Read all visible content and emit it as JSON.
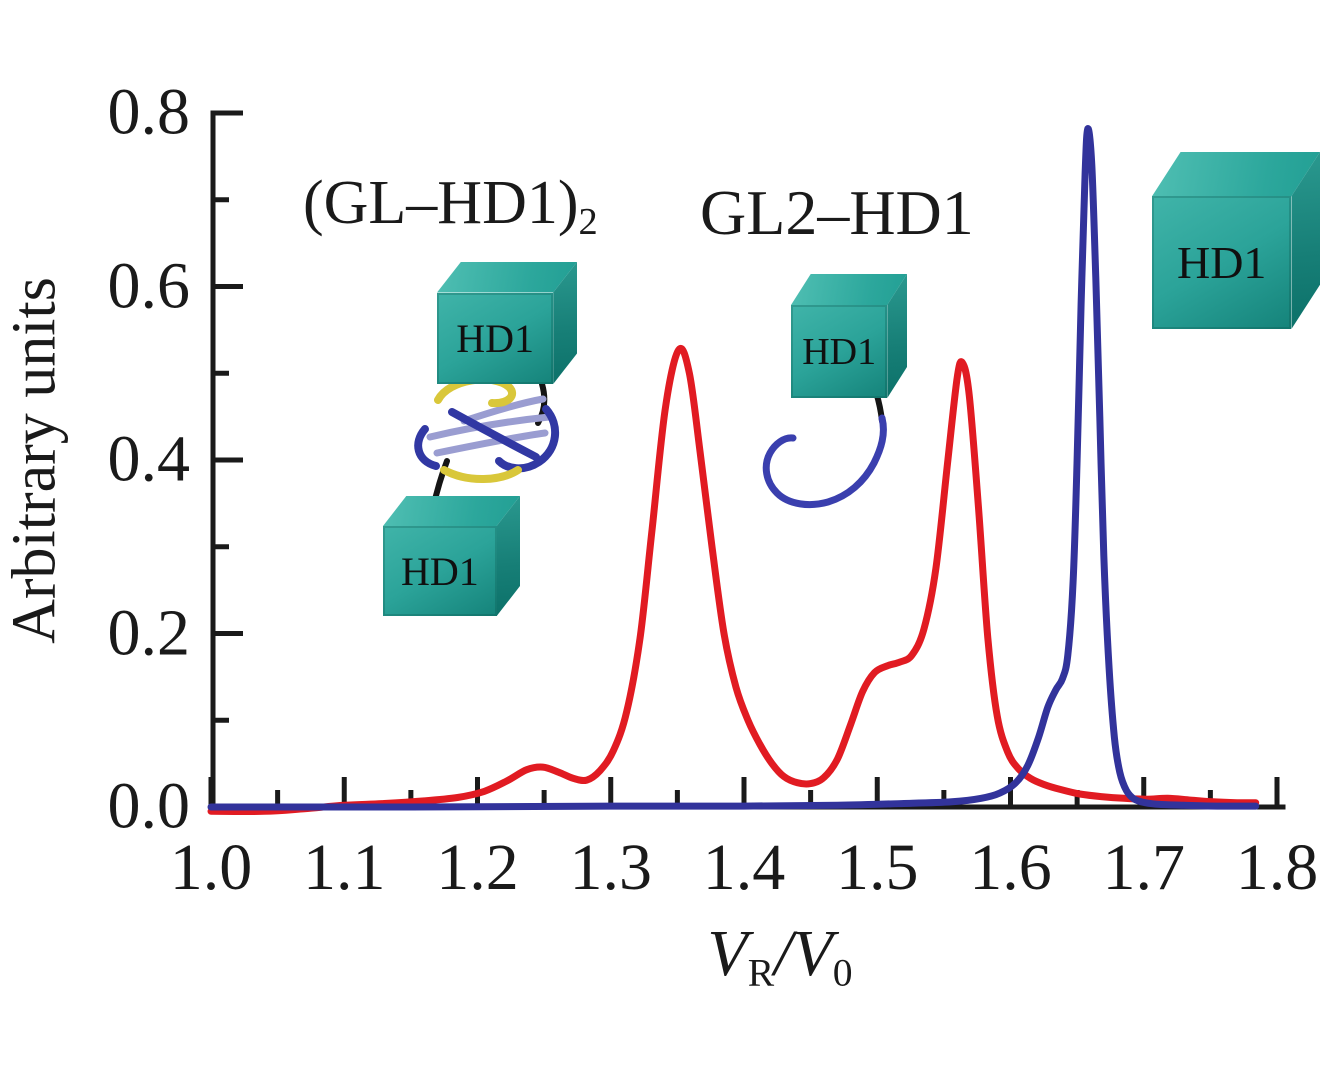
{
  "figure": {
    "ylabel": "Arbitrary units",
    "xlabel": "V_R/V_0",
    "xlabel_parts": {
      "base1": "V",
      "sub1": "R",
      "slash": "/",
      "base2": "V",
      "sub2": "0"
    }
  },
  "labels": {
    "hd1": "HD1"
  },
  "colors": {
    "red_trace": "#e11b22",
    "blue_trace": "#32339b",
    "cube_teal": "#2ba399",
    "axis": "#1a1a1a"
  },
  "chart_data": {
    "type": "line",
    "title": "",
    "xlabel": "V_R/V_0",
    "ylabel": "Arbitrary units",
    "xlim": [
      1.0,
      1.8
    ],
    "ylim": [
      0.0,
      0.8
    ],
    "grid": false,
    "legend_position": "none",
    "x_ticks": {
      "values": [
        1.0,
        1.1,
        1.2,
        1.3,
        1.4,
        1.5,
        1.6,
        1.7,
        1.8
      ],
      "labels": [
        "1.0",
        "1.1",
        "1.2",
        "1.3",
        "1.4",
        "1.5",
        "1.6",
        "1.7",
        "1.8"
      ],
      "minor": [
        1.05,
        1.15,
        1.25,
        1.35,
        1.45,
        1.55,
        1.65,
        1.75
      ]
    },
    "y_ticks": {
      "values": [
        0.0,
        0.2,
        0.4,
        0.6,
        0.8
      ],
      "labels": [
        "0.0",
        "0.2",
        "0.4",
        "0.6",
        "0.8"
      ],
      "minor": [
        0.1,
        0.3,
        0.5,
        0.7
      ]
    },
    "annotations": [
      {
        "text": "(GL–HD1)",
        "sub": "2",
        "near_peak_x": 1.35
      },
      {
        "text": "GL2–HD1",
        "near_peak_x": 1.56
      }
    ],
    "series": [
      {
        "name": "red-trace",
        "color": "#e11b22",
        "peaks": [
          {
            "x": 1.25,
            "y": 0.046
          },
          {
            "x": 1.35,
            "y": 0.53
          },
          {
            "x": 1.51,
            "y": 0.17
          },
          {
            "x": 1.56,
            "y": 0.51
          }
        ],
        "points": [
          [
            1.0,
            -0.005
          ],
          [
            1.04,
            -0.005
          ],
          [
            1.07,
            -0.002
          ],
          [
            1.1,
            0.002
          ],
          [
            1.13,
            0.004
          ],
          [
            1.16,
            0.007
          ],
          [
            1.185,
            0.011
          ],
          [
            1.205,
            0.018
          ],
          [
            1.222,
            0.03
          ],
          [
            1.237,
            0.043
          ],
          [
            1.249,
            0.046
          ],
          [
            1.261,
            0.04
          ],
          [
            1.272,
            0.033
          ],
          [
            1.282,
            0.031
          ],
          [
            1.292,
            0.042
          ],
          [
            1.302,
            0.065
          ],
          [
            1.312,
            0.11
          ],
          [
            1.322,
            0.195
          ],
          [
            1.331,
            0.32
          ],
          [
            1.341,
            0.46
          ],
          [
            1.351,
            0.527
          ],
          [
            1.359,
            0.5
          ],
          [
            1.367,
            0.41
          ],
          [
            1.376,
            0.3
          ],
          [
            1.385,
            0.2
          ],
          [
            1.394,
            0.138
          ],
          [
            1.403,
            0.1
          ],
          [
            1.412,
            0.072
          ],
          [
            1.421,
            0.05
          ],
          [
            1.43,
            0.035
          ],
          [
            1.44,
            0.028
          ],
          [
            1.45,
            0.027
          ],
          [
            1.46,
            0.034
          ],
          [
            1.47,
            0.055
          ],
          [
            1.48,
            0.095
          ],
          [
            1.489,
            0.133
          ],
          [
            1.498,
            0.155
          ],
          [
            1.508,
            0.163
          ],
          [
            1.517,
            0.167
          ],
          [
            1.526,
            0.175
          ],
          [
            1.535,
            0.205
          ],
          [
            1.544,
            0.275
          ],
          [
            1.553,
            0.4
          ],
          [
            1.56,
            0.495
          ],
          [
            1.564,
            0.512
          ],
          [
            1.569,
            0.475
          ],
          [
            1.576,
            0.345
          ],
          [
            1.583,
            0.195
          ],
          [
            1.59,
            0.105
          ],
          [
            1.598,
            0.063
          ],
          [
            1.606,
            0.044
          ],
          [
            1.615,
            0.033
          ],
          [
            1.625,
            0.026
          ],
          [
            1.638,
            0.02
          ],
          [
            1.652,
            0.015
          ],
          [
            1.668,
            0.012
          ],
          [
            1.685,
            0.01
          ],
          [
            1.702,
            0.009
          ],
          [
            1.718,
            0.01
          ],
          [
            1.735,
            0.008
          ],
          [
            1.752,
            0.006
          ],
          [
            1.77,
            0.005
          ],
          [
            1.784,
            0.005
          ]
        ]
      },
      {
        "name": "blue-trace",
        "color": "#32339b",
        "peaks": [
          {
            "x": 1.62,
            "y": 0.13
          },
          {
            "x": 1.66,
            "y": 0.78
          }
        ],
        "points": [
          [
            1.0,
            0.0
          ],
          [
            1.15,
            0.0
          ],
          [
            1.3,
            0.001
          ],
          [
            1.4,
            0.001
          ],
          [
            1.47,
            0.002
          ],
          [
            1.52,
            0.004
          ],
          [
            1.556,
            0.006
          ],
          [
            1.578,
            0.01
          ],
          [
            1.592,
            0.016
          ],
          [
            1.604,
            0.028
          ],
          [
            1.613,
            0.048
          ],
          [
            1.621,
            0.08
          ],
          [
            1.628,
            0.115
          ],
          [
            1.634,
            0.135
          ],
          [
            1.639,
            0.148
          ],
          [
            1.643,
            0.175
          ],
          [
            1.647,
            0.26
          ],
          [
            1.65,
            0.4
          ],
          [
            1.653,
            0.58
          ],
          [
            1.656,
            0.73
          ],
          [
            1.658,
            0.782
          ],
          [
            1.661,
            0.74
          ],
          [
            1.664,
            0.61
          ],
          [
            1.667,
            0.45
          ],
          [
            1.67,
            0.29
          ],
          [
            1.674,
            0.16
          ],
          [
            1.678,
            0.08
          ],
          [
            1.682,
            0.04
          ],
          [
            1.687,
            0.019
          ],
          [
            1.693,
            0.009
          ],
          [
            1.701,
            0.005
          ],
          [
            1.712,
            0.003
          ],
          [
            1.73,
            0.002
          ],
          [
            1.755,
            0.001
          ],
          [
            1.784,
            0.001
          ]
        ]
      }
    ]
  }
}
